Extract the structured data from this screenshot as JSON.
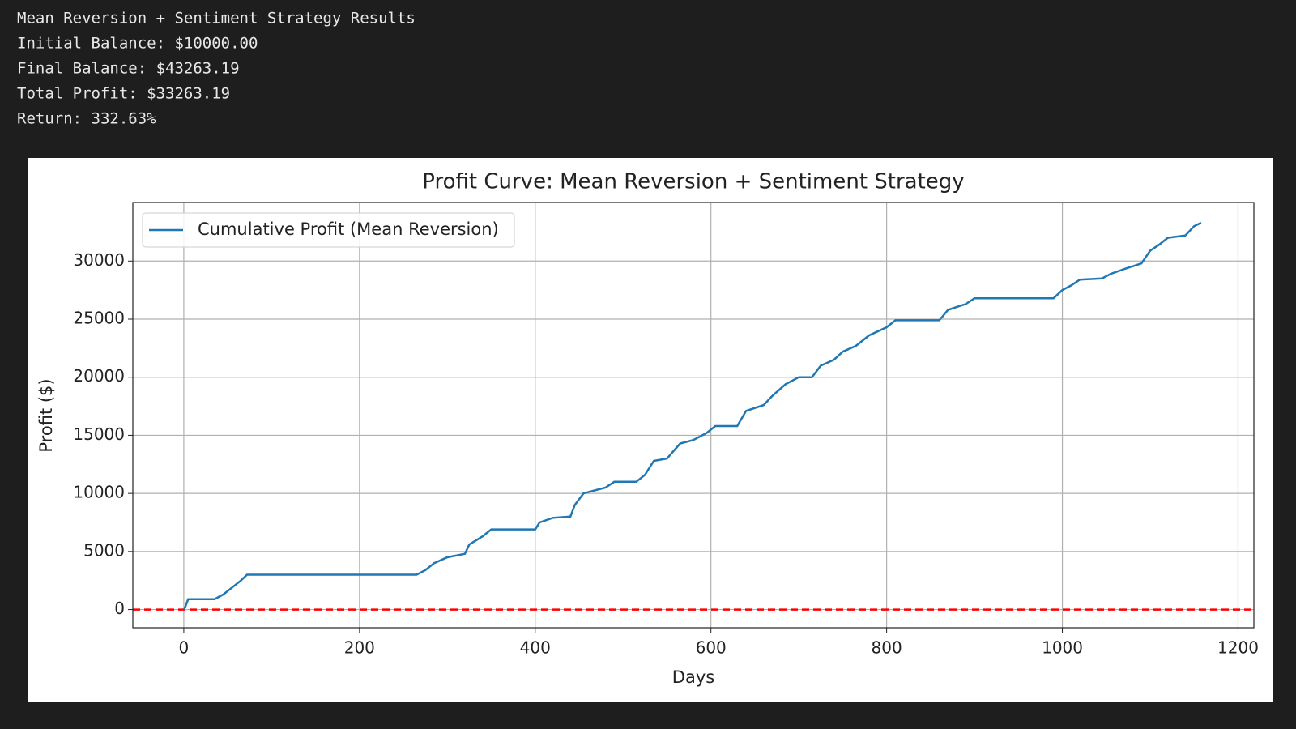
{
  "output": {
    "lines": [
      "Mean Reversion + Sentiment Strategy Results",
      "Initial Balance: $10000.00",
      "Final Balance: $43263.19",
      "Total Profit: $33263.19",
      "Return: 332.63%"
    ]
  },
  "chart_data": {
    "type": "line",
    "title": "Profit Curve: Mean Reversion + Sentiment Strategy",
    "x_label": "Days",
    "y_label": "Profit ($)",
    "x": [
      0,
      2,
      5,
      35,
      45,
      55,
      65,
      72,
      265,
      275,
      285,
      300,
      320,
      325,
      340,
      350,
      400,
      405,
      420,
      440,
      445,
      455,
      480,
      490,
      515,
      525,
      535,
      550,
      565,
      580,
      595,
      605,
      630,
      640,
      660,
      670,
      685,
      700,
      715,
      725,
      740,
      750,
      765,
      780,
      800,
      810,
      860,
      870,
      890,
      900,
      990,
      1000,
      1010,
      1020,
      1045,
      1055,
      1070,
      1090,
      1100,
      1110,
      1120,
      1140,
      1150,
      1158
    ],
    "series": [
      {
        "name": "Cumulative Profit (Mean Reversion)",
        "color": "#1f77b4",
        "values": [
          0,
          300,
          900,
          900,
          1300,
          1900,
          2500,
          3000,
          3000,
          3400,
          4000,
          4500,
          4800,
          5600,
          6300,
          6900,
          6900,
          7500,
          7900,
          8000,
          9000,
          10000,
          10500,
          11000,
          11000,
          11600,
          12800,
          13000,
          14300,
          14600,
          15200,
          15800,
          15800,
          17100,
          17600,
          18400,
          19400,
          20000,
          20000,
          21000,
          21500,
          22200,
          22700,
          23600,
          24300,
          24900,
          24900,
          25800,
          26300,
          26800,
          26800,
          27500,
          27900,
          28400,
          28500,
          28900,
          29300,
          29800,
          30900,
          31400,
          32000,
          32200,
          33000,
          33300
        ]
      }
    ],
    "reference_line": {
      "value": 0,
      "color": "#ff0000"
    },
    "xlim": [
      -58,
      1218
    ],
    "ylim": [
      -1564,
      35040
    ],
    "xticks": [
      0,
      200,
      400,
      600,
      800,
      1000,
      1200
    ],
    "yticks": [
      0,
      5000,
      10000,
      15000,
      20000,
      25000,
      30000
    ],
    "grid": true,
    "legend": "upper-left"
  }
}
